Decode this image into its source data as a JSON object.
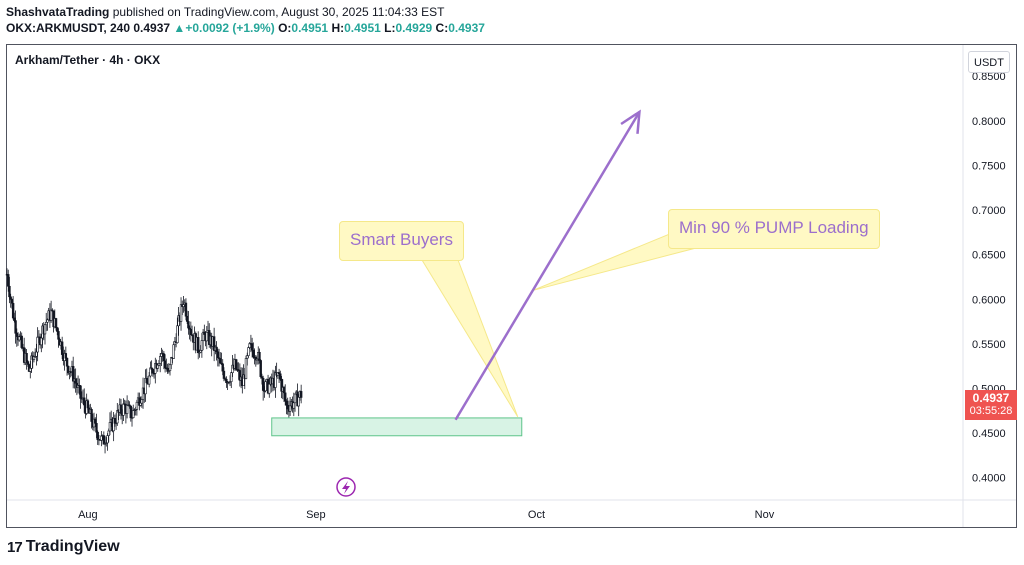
{
  "header": {
    "author": "ShashvataTrading",
    "published_text": "published on TradingView.com, August 30, 2025 11:04:33 EST",
    "symbol_interval": "OKX:ARKMUSDT, 240",
    "last": "0.4937",
    "arrow": "▲",
    "change": "+0.0092 (+1.9%)",
    "o_label": "O:",
    "o_value": "0.4951",
    "h_label": "H:",
    "h_value": "0.4951",
    "l_label": "L:",
    "l_value": "0.4929",
    "c_label": "C:",
    "c_value": "0.4937"
  },
  "symbol_title": "Arkham/Tether · 4h · OKX",
  "currency": "USDT",
  "price_badge": {
    "price": "0.4937",
    "countdown": "03:55:28"
  },
  "callouts": {
    "smart_buyers": "Smart Buyers",
    "pump": "Min 90 % PUMP Loading"
  },
  "footer": {
    "brand": "TradingView",
    "logo_mark": "17"
  },
  "colors": {
    "up": "#26a69a",
    "down": "#ef5350",
    "candle": "#131722",
    "annotation": "#9c6fcc",
    "zone_fill": "#d8f3e5",
    "zone_border": "#5ec48a",
    "callout_bg": "#fff9c4"
  },
  "chart_data": {
    "type": "candlestick",
    "title": "Arkham/Tether · 4h · OKX",
    "y_ticks": [
      0.85,
      0.8,
      0.75,
      0.7,
      0.65,
      0.6,
      0.55,
      0.5,
      0.45,
      0.4
    ],
    "y_tick_labels": [
      "0.8500",
      "0.8000",
      "0.7500",
      "0.7000",
      "0.6500",
      "0.6000",
      "0.5500",
      "0.5000",
      "0.4500",
      "0.4000"
    ],
    "ylim": [
      0.375,
      0.885
    ],
    "x_ticks": [
      "Aug",
      "Sep",
      "Oct",
      "Nov"
    ],
    "x_tick_dates": [
      "2025-08-01",
      "2025-09-01",
      "2025-10-01",
      "2025-11-01"
    ],
    "xlim": [
      "2025-07-21",
      "2025-11-28"
    ],
    "close_series": [
      {
        "d": "2025-07-21",
        "c": 0.628
      },
      {
        "d": "2025-07-22",
        "c": 0.575
      },
      {
        "d": "2025-07-23",
        "c": 0.545
      },
      {
        "d": "2025-07-24",
        "c": 0.52
      },
      {
        "d": "2025-07-25",
        "c": 0.545
      },
      {
        "d": "2025-07-26",
        "c": 0.57
      },
      {
        "d": "2025-07-27",
        "c": 0.585
      },
      {
        "d": "2025-07-28",
        "c": 0.56
      },
      {
        "d": "2025-07-29",
        "c": 0.53
      },
      {
        "d": "2025-07-30",
        "c": 0.515
      },
      {
        "d": "2025-07-31",
        "c": 0.49
      },
      {
        "d": "2025-08-01",
        "c": 0.475
      },
      {
        "d": "2025-08-02",
        "c": 0.455
      },
      {
        "d": "2025-08-03",
        "c": 0.44
      },
      {
        "d": "2025-08-04",
        "c": 0.455
      },
      {
        "d": "2025-08-05",
        "c": 0.47
      },
      {
        "d": "2025-08-06",
        "c": 0.48
      },
      {
        "d": "2025-08-07",
        "c": 0.47
      },
      {
        "d": "2025-08-08",
        "c": 0.49
      },
      {
        "d": "2025-08-09",
        "c": 0.505
      },
      {
        "d": "2025-08-10",
        "c": 0.525
      },
      {
        "d": "2025-08-11",
        "c": 0.54
      },
      {
        "d": "2025-08-12",
        "c": 0.515
      },
      {
        "d": "2025-08-13",
        "c": 0.56
      },
      {
        "d": "2025-08-14",
        "c": 0.6
      },
      {
        "d": "2025-08-15",
        "c": 0.565
      },
      {
        "d": "2025-08-16",
        "c": 0.545
      },
      {
        "d": "2025-08-17",
        "c": 0.56
      },
      {
        "d": "2025-08-18",
        "c": 0.55
      },
      {
        "d": "2025-08-19",
        "c": 0.525
      },
      {
        "d": "2025-08-20",
        "c": 0.51
      },
      {
        "d": "2025-08-21",
        "c": 0.525
      },
      {
        "d": "2025-08-22",
        "c": 0.505
      },
      {
        "d": "2025-08-23",
        "c": 0.545
      },
      {
        "d": "2025-08-24",
        "c": 0.54
      },
      {
        "d": "2025-08-25",
        "c": 0.5
      },
      {
        "d": "2025-08-26",
        "c": 0.505
      },
      {
        "d": "2025-08-27",
        "c": 0.515
      },
      {
        "d": "2025-08-28",
        "c": 0.48
      },
      {
        "d": "2025-08-29",
        "c": 0.4845
      },
      {
        "d": "2025-08-30",
        "c": 0.4937
      }
    ],
    "demand_zone": {
      "from": "2025-08-26",
      "to": "2025-09-29",
      "low": 0.447,
      "high": 0.467
    },
    "projection_arrow": {
      "from": {
        "d": "2025-09-20",
        "y": 0.465
      },
      "to": {
        "d": "2025-10-15",
        "y": 0.81
      }
    },
    "grid": false,
    "last_price": 0.4937
  }
}
